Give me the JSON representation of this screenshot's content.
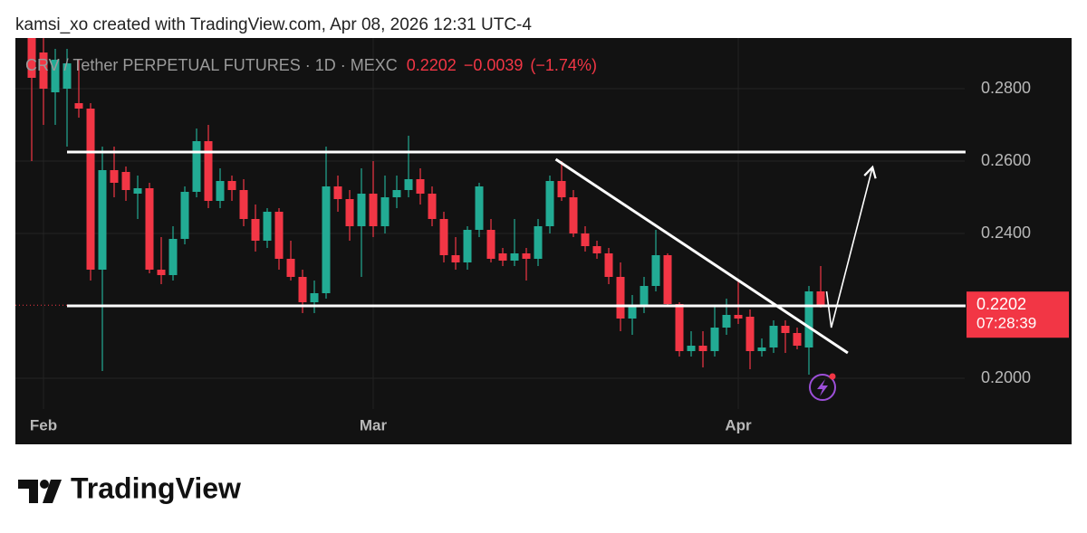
{
  "header": "kamsi_xo created with TradingView.com, Apr 08, 2026 12:31 UTC-4",
  "brand": "TradingView",
  "chart_data": {
    "type": "candlestick",
    "title": "CRV / Tether PERPETUAL FUTURES · 1D · MEXC",
    "last": 0.2202,
    "change": {
      "value": -0.0039,
      "label": "−0.0039"
    },
    "change_pct": {
      "value": -1.74,
      "label": "(−1.74%)"
    },
    "countdown": "07:28:39",
    "up_color": "#22ab94",
    "down_color": "#f23645",
    "grid": true,
    "xlim": [
      -2.385,
      78.23
    ],
    "xticks": [
      {
        "value": 0,
        "label": "Feb"
      },
      {
        "value": 28,
        "label": "Mar"
      },
      {
        "value": 59,
        "label": "Apr"
      }
    ],
    "ylim": [
      0.1915,
      0.294
    ],
    "yticks": [
      {
        "value": 0.2,
        "label": "0.2000"
      },
      {
        "value": 0.24,
        "label": "0.2400"
      },
      {
        "value": 0.26,
        "label": "0.2600"
      },
      {
        "value": 0.28,
        "label": "0.2800"
      }
    ],
    "x": [
      -1,
      0,
      1,
      2,
      3,
      4,
      5,
      6,
      7,
      8,
      9,
      10,
      11,
      12,
      13,
      14,
      15,
      16,
      17,
      18,
      19,
      20,
      21,
      22,
      23,
      24,
      25,
      26,
      27,
      28,
      29,
      30,
      31,
      32,
      33,
      34,
      35,
      36,
      37,
      38,
      39,
      40,
      41,
      42,
      43,
      44,
      45,
      46,
      47,
      48,
      49,
      50,
      51,
      52,
      53,
      54,
      55,
      56,
      57,
      58,
      59,
      60,
      61,
      62,
      63,
      64,
      65,
      66
    ],
    "open": [
      0.294,
      0.29,
      0.279,
      0.28,
      0.276,
      0.2745,
      0.23,
      0.2575,
      0.257,
      0.251,
      0.2525,
      0.23,
      0.2285,
      0.2385,
      0.2515,
      0.2655,
      0.249,
      0.2545,
      0.252,
      0.244,
      0.238,
      0.246,
      0.233,
      0.228,
      0.221,
      0.2235,
      0.253,
      0.2495,
      0.242,
      0.251,
      0.242,
      0.25,
      0.252,
      0.255,
      0.251,
      0.244,
      0.234,
      0.232,
      0.241,
      0.241,
      0.2345,
      0.2325,
      0.2345,
      0.233,
      0.242,
      0.2545,
      0.25,
      0.24,
      0.2365,
      0.2345,
      0.228,
      0.2165,
      0.22,
      0.2255,
      0.234,
      0.2205,
      0.2075,
      0.209,
      0.2075,
      0.214,
      0.2175,
      0.217,
      0.2075,
      0.2085,
      0.2145,
      0.2125,
      0.2085,
      0.224
    ],
    "high": [
      0.295,
      0.294,
      0.291,
      0.291,
      0.288,
      0.276,
      0.264,
      0.264,
      0.2585,
      0.256,
      0.254,
      0.239,
      0.242,
      0.253,
      0.269,
      0.27,
      0.258,
      0.256,
      0.255,
      0.248,
      0.247,
      0.247,
      0.238,
      0.23,
      0.227,
      0.264,
      0.256,
      0.252,
      0.258,
      0.26,
      0.256,
      0.256,
      0.267,
      0.258,
      0.253,
      0.246,
      0.239,
      0.242,
      0.254,
      0.244,
      0.236,
      0.244,
      0.236,
      0.244,
      0.256,
      0.26,
      0.252,
      0.242,
      0.238,
      0.236,
      0.232,
      0.223,
      0.228,
      0.241,
      0.2345,
      0.221,
      0.213,
      0.213,
      0.22,
      0.222,
      0.227,
      0.219,
      0.211,
      0.216,
      0.216,
      0.214,
      0.2255,
      0.231
    ],
    "low": [
      0.26,
      0.27,
      0.27,
      0.264,
      0.272,
      0.227,
      0.202,
      0.25,
      0.249,
      0.244,
      0.229,
      0.226,
      0.227,
      0.237,
      0.25,
      0.247,
      0.247,
      0.249,
      0.242,
      0.235,
      0.236,
      0.23,
      0.227,
      0.218,
      0.218,
      0.222,
      0.246,
      0.238,
      0.228,
      0.239,
      0.24,
      0.247,
      0.25,
      0.248,
      0.242,
      0.232,
      0.23,
      0.23,
      0.239,
      0.232,
      0.231,
      0.231,
      0.227,
      0.231,
      0.24,
      0.249,
      0.239,
      0.235,
      0.233,
      0.226,
      0.213,
      0.212,
      0.218,
      0.224,
      0.22,
      0.206,
      0.206,
      0.203,
      0.206,
      0.212,
      0.215,
      0.2025,
      0.206,
      0.207,
      0.207,
      0.208,
      0.201,
      0.2195
    ],
    "close": [
      0.283,
      0.28,
      0.288,
      0.287,
      0.2745,
      0.23,
      0.2575,
      0.254,
      0.252,
      0.2525,
      0.23,
      0.2285,
      0.2385,
      0.2515,
      0.2655,
      0.249,
      0.2545,
      0.252,
      0.244,
      0.238,
      0.246,
      0.233,
      0.228,
      0.221,
      0.2235,
      0.253,
      0.2495,
      0.242,
      0.251,
      0.242,
      0.25,
      0.252,
      0.255,
      0.251,
      0.244,
      0.234,
      0.232,
      0.241,
      0.253,
      0.233,
      0.2325,
      0.2345,
      0.233,
      0.242,
      0.2545,
      0.25,
      0.24,
      0.2365,
      0.2345,
      0.228,
      0.2165,
      0.22,
      0.2255,
      0.234,
      0.2205,
      0.2075,
      0.209,
      0.2075,
      0.214,
      0.2175,
      0.2165,
      0.2075,
      0.2085,
      0.2145,
      0.2125,
      0.209,
      0.224,
      0.2202
    ],
    "trendlines": [
      {
        "points": [
          [
            2,
            0.2625
          ],
          [
            78.3,
            0.2625
          ]
        ]
      },
      {
        "points": [
          [
            2,
            0.22
          ],
          [
            78.3,
            0.22
          ]
        ]
      },
      {
        "points": [
          [
            43.5,
            0.2605
          ],
          [
            68.3,
            0.207
          ]
        ]
      }
    ],
    "arrow": {
      "points": [
        [
          66.5,
          0.224
        ],
        [
          66.9,
          0.214
        ],
        [
          70.4,
          0.2583
        ]
      ]
    }
  }
}
